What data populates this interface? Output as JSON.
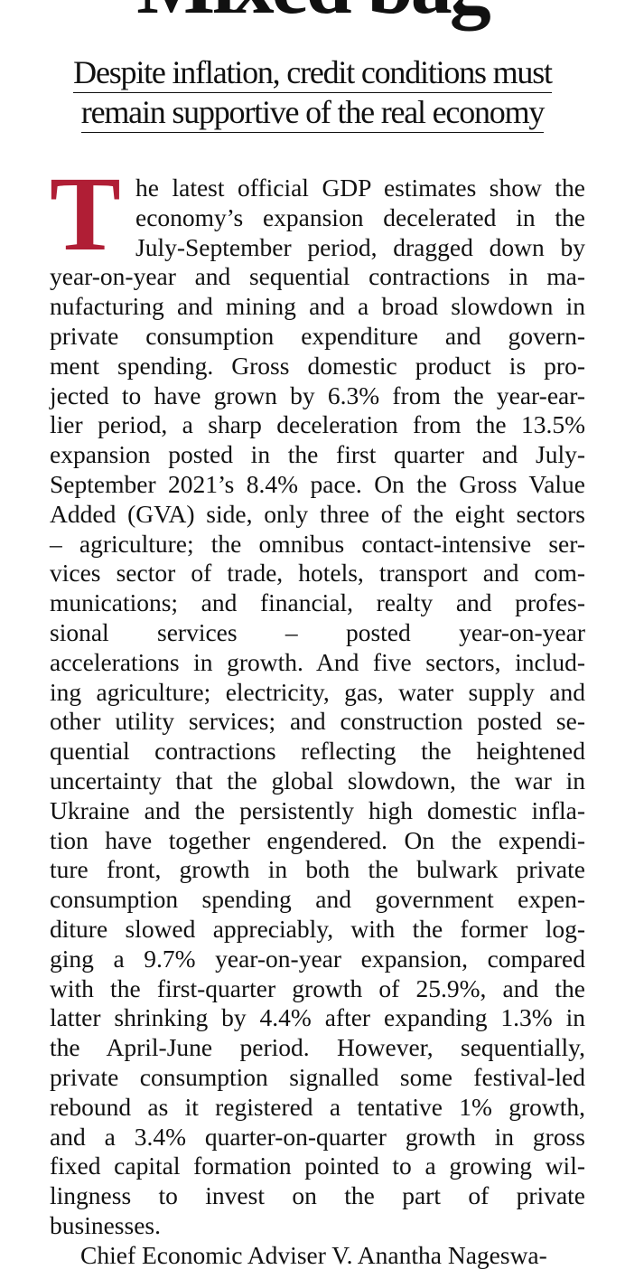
{
  "article": {
    "headline": "Mixed bag",
    "subheadline": [
      "Despite inflation, credit conditions must",
      "remain supportive of the real economy"
    ],
    "drop_cap": "T",
    "accent_color": "#b01e35",
    "lines": [
      "he latest official GDP estimates show the",
      "economy’s expansion decelerated in the",
      "July-September period, dragged down by",
      "year-on-year and sequential contractions in ma-",
      "nufacturing and mining and a broad slowdown in",
      "private consumption expenditure and govern-",
      "ment spending. Gross domestic product is pro-",
      "jected to have grown by 6.3% from the year-ear-",
      "lier period, a sharp deceleration from the 13.5%",
      "expansion posted in the first quarter and July-",
      "September 2021’s 8.4% pace. On the Gross Value",
      "Added (GVA) side, only three of the eight sectors",
      "– agriculture; the omnibus contact-intensive ser-",
      "vices sector of trade, hotels, transport and com-",
      "munications; and financial, realty and profes-",
      "sional services – posted year-on-year",
      "accelerations in growth. And five sectors, includ-",
      "ing agriculture; electricity, gas, water supply and",
      "other utility services; and construction posted se-",
      "quential contractions reflecting the heightened",
      "uncertainty that the global slowdown, the war in",
      "Ukraine and the persistently high domestic infla-",
      "tion have together engendered. On the expendi-",
      "ture front, growth in both the bulwark private",
      "consumption spending and government expen-",
      "diture slowed appreciably, with the former log-",
      "ging a 9.7% year-on-year expansion, compared",
      "with the first-quarter growth of 25.9%, and the",
      "latter shrinking by 4.4% after expanding 1.3% in",
      "the April-June period. However, sequentially,",
      "private consumption signalled some festival-led",
      "rebound as it registered a tentative 1% growth,",
      "and a 3.4% quarter-on-quarter growth in gross",
      "fixed capital formation pointed to a growing wil-",
      "lingness to invest on the part of private",
      "businesses.",
      "Chief Economic Adviser V. Anantha Nageswa-"
    ]
  }
}
